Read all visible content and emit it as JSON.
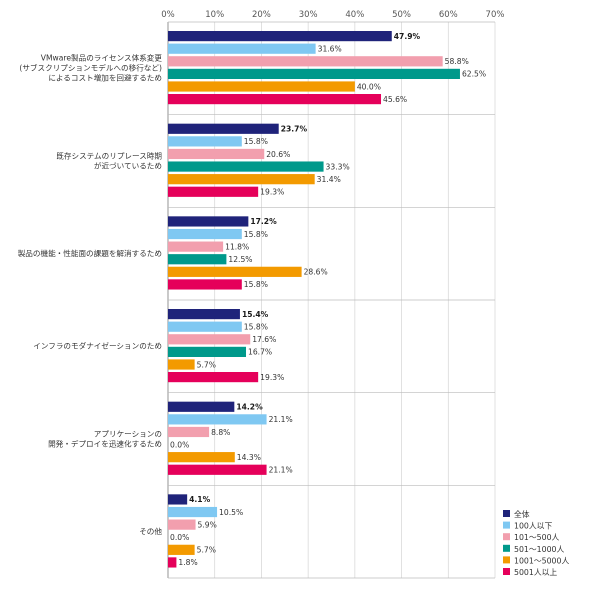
{
  "chart_data": {
    "type": "bar",
    "orientation": "horizontal",
    "xlim": [
      0,
      70
    ],
    "x_ticks": [
      0,
      10,
      20,
      30,
      40,
      50,
      60,
      70
    ],
    "x_tick_labels": [
      "0%",
      "10%",
      "20%",
      "30%",
      "40%",
      "50%",
      "60%",
      "70%"
    ],
    "grid": true,
    "legend_position": "bottom-right",
    "categories": [
      {
        "lines": [
          "VMware製品のライセンス体系変更",
          "(サブスクリプションモデルへの移行など)",
          "によるコスト増加を回避するため"
        ]
      },
      {
        "lines": [
          "既存システムのリプレース時期",
          "が近づいているため"
        ]
      },
      {
        "lines": [
          "製品の機能・性能面の課題を解消するため"
        ]
      },
      {
        "lines": [
          "インフラのモダナイゼーションのため"
        ]
      },
      {
        "lines": [
          "アプリケーションの",
          "開発・デプロイを迅速化するため"
        ]
      },
      {
        "lines": [
          "その他"
        ]
      }
    ],
    "series": [
      {
        "name": "全体",
        "color": "#1f237a",
        "values": [
          47.9,
          23.7,
          17.2,
          15.4,
          14.2,
          4.1
        ],
        "labels": [
          "47.9%",
          "23.7%",
          "17.2%",
          "15.4%",
          "14.2%",
          "4.1%"
        ],
        "bold": true
      },
      {
        "name": "100人以下",
        "color": "#7fc8f2",
        "values": [
          31.6,
          15.8,
          15.8,
          15.8,
          21.1,
          10.5
        ],
        "labels": [
          "31.6%",
          "15.8%",
          "15.8%",
          "15.8%",
          "21.1%",
          "10.5%"
        ],
        "bold": false
      },
      {
        "name": "101～500人",
        "color": "#f29fae",
        "values": [
          58.8,
          20.6,
          11.8,
          17.6,
          8.8,
          5.9
        ],
        "labels": [
          "58.8%",
          "20.6%",
          "11.8%",
          "17.6%",
          "8.8%",
          "5.9%"
        ],
        "bold": false
      },
      {
        "name": "501～1000人",
        "color": "#00998b",
        "values": [
          62.5,
          33.3,
          12.5,
          16.7,
          0.0,
          0.0
        ],
        "labels": [
          "62.5%",
          "33.3%",
          "12.5%",
          "16.7%",
          "0.0%",
          "0.0%"
        ],
        "bold": false
      },
      {
        "name": "1001～5000人",
        "color": "#f39a00",
        "values": [
          40.0,
          31.4,
          28.6,
          5.7,
          14.3,
          5.7
        ],
        "labels": [
          "40.0%",
          "31.4%",
          "28.6%",
          "5.7%",
          "14.3%",
          "5.7%"
        ],
        "bold": false
      },
      {
        "name": "5001人以上",
        "color": "#e5005a",
        "values": [
          45.6,
          19.3,
          15.8,
          19.3,
          21.1,
          1.8
        ],
        "labels": [
          "45.6%",
          "19.3%",
          "15.8%",
          "19.3%",
          "21.1%",
          "1.8%"
        ],
        "bold": false
      }
    ]
  }
}
